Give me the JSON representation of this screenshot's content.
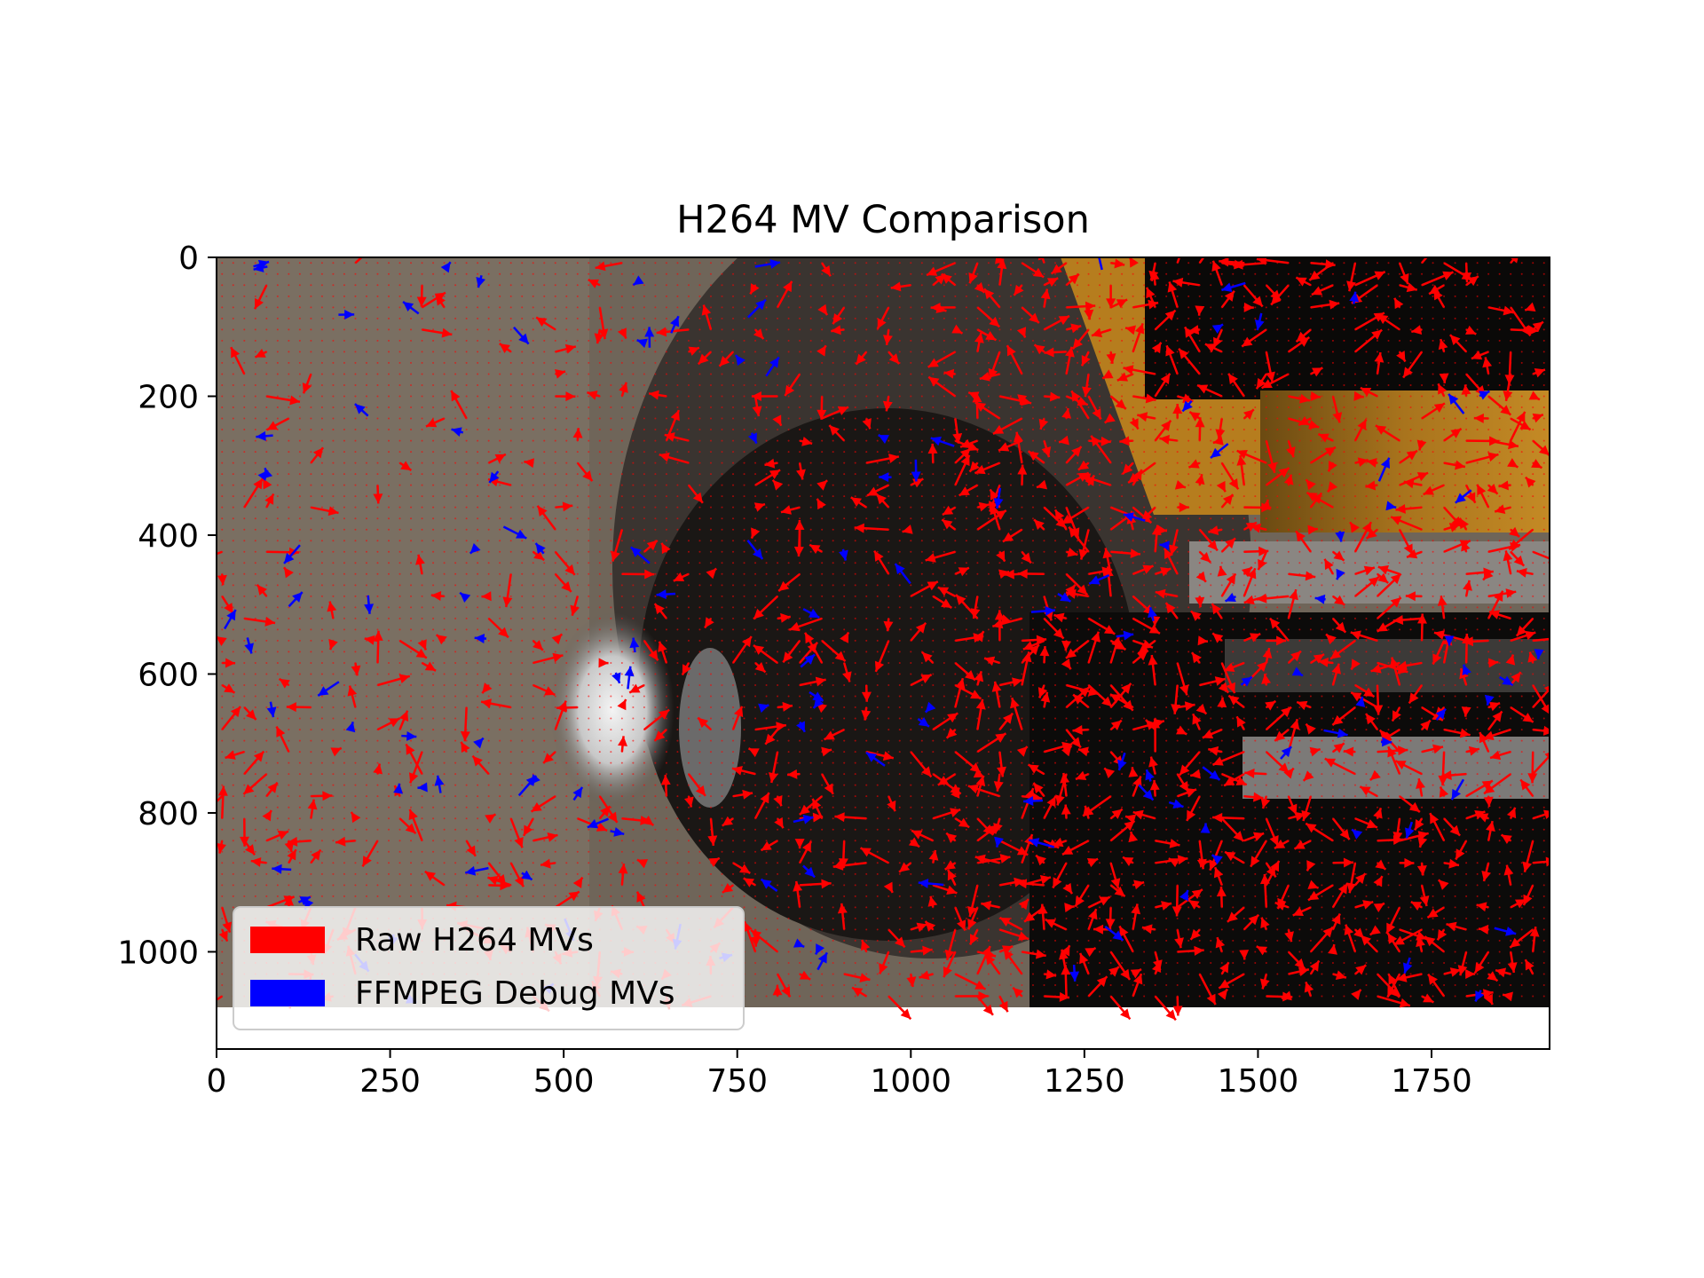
{
  "chart_data": {
    "type": "quiver",
    "title": "H264 MV Comparison",
    "xlabel": "",
    "ylabel": "",
    "xlim": [
      0,
      1920
    ],
    "ylim": [
      1140,
      0
    ],
    "frame": {
      "width": 1920,
      "height": 1080
    },
    "x_ticks": [
      0,
      250,
      500,
      750,
      1000,
      1250,
      1500,
      1750
    ],
    "y_ticks": [
      0,
      200,
      400,
      600,
      800,
      1000
    ],
    "grid": false,
    "legend_position": "lower-left",
    "background": "video frame (image)",
    "block_spacing": 16,
    "series": [
      {
        "name": "Raw H264 MVs",
        "color": "#ff0000"
      },
      {
        "name": "FFMPEG Debug MVs",
        "color": "#0000ff"
      }
    ]
  }
}
